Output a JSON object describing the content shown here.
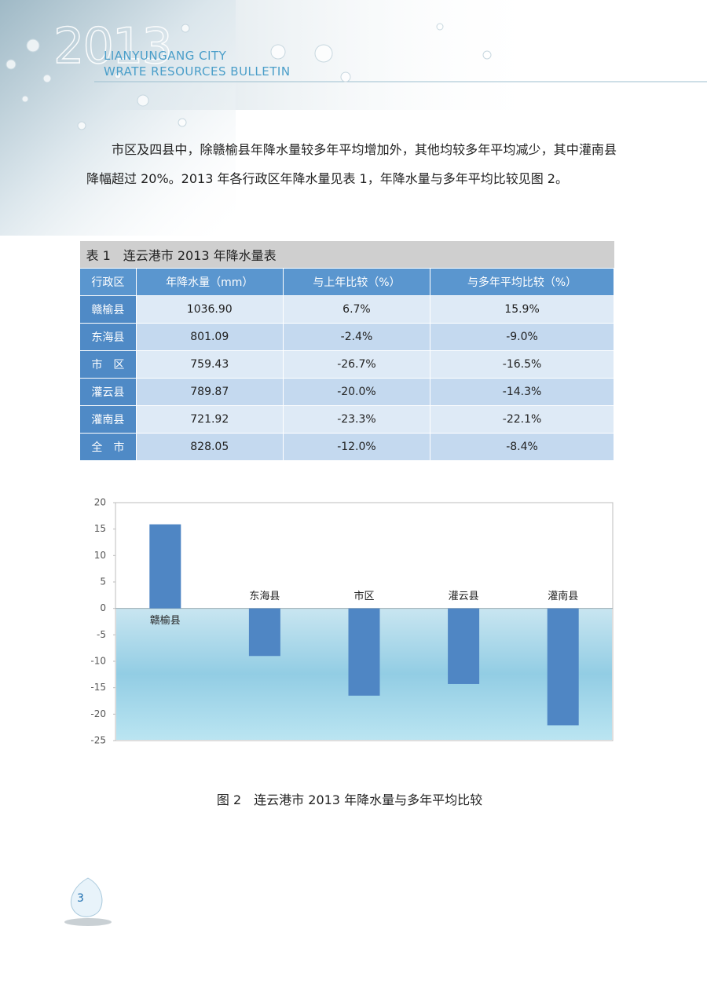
{
  "header": {
    "year": "2013",
    "line1": "LIANYUNGANG CITY",
    "line2": "WRATE RESOURCES BULLETIN"
  },
  "paragraph": "市区及四县中，除赣榆县年降水量较多年平均增加外，其他均较多年平均减少，其中灌南县降幅超过 20%。2013 年各行政区年降水量见表 1，年降水量与多年平均比较见图 2。",
  "table": {
    "title": "表 1　连云港市 2013 年降水量表",
    "header": [
      "行政区",
      "年降水量（mm）",
      "与上年比较（%）",
      "与多年平均比较（%）"
    ],
    "rows": [
      [
        "赣榆县",
        "1036.90",
        "6.7%",
        "15.9%"
      ],
      [
        "东海县",
        "801.09",
        "-2.4%",
        "-9.0%"
      ],
      [
        "市　区",
        "759.43",
        "-26.7%",
        "-16.5%"
      ],
      [
        "灌云县",
        "789.87",
        "-20.0%",
        "-14.3%"
      ],
      [
        "灌南县",
        "721.92",
        "-23.3%",
        "-22.1%"
      ],
      [
        "全　市",
        "828.05",
        "-12.0%",
        "-8.4%"
      ]
    ]
  },
  "chart_data": {
    "type": "bar",
    "categories": [
      "赣榆县",
      "东海县",
      "市区",
      "灌云县",
      "灌南县"
    ],
    "values": [
      15.9,
      -9.0,
      -16.5,
      -14.3,
      -22.1
    ],
    "color": "#4f86c4",
    "ylim": [
      -25,
      20
    ],
    "yticks": [
      -25,
      -20,
      -15,
      -10,
      -5,
      0,
      5,
      10,
      15,
      20
    ]
  },
  "caption": "图 2　连云港市 2013 年降水量与多年平均比较",
  "page_number": "3"
}
